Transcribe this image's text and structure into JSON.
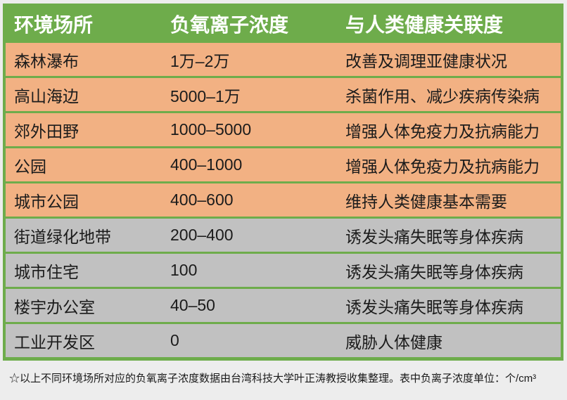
{
  "page": {
    "background": "#ededed"
  },
  "colors": {
    "accent_green": "#6eac4b",
    "row_orange": "#f2b183",
    "row_gray": "#c1c1c1",
    "header_text": "#ffffff",
    "body_text": "#1b1b1b"
  },
  "chart_data": {
    "type": "table",
    "columns": [
      "环境场所",
      "负氧离子浓度",
      "与人类健康关联度"
    ],
    "rows": [
      {
        "place": "森林瀑布",
        "concentration": "1万–2万",
        "health": "改善及调理亚健康状况",
        "tone": "orange"
      },
      {
        "place": "高山海边",
        "concentration": "5000–1万",
        "health": "杀菌作用、减少疾病传染病",
        "tone": "orange"
      },
      {
        "place": "郊外田野",
        "concentration": "1000–5000",
        "health": "增强人体免疫力及抗病能力",
        "tone": "orange"
      },
      {
        "place": "公园",
        "concentration": "400–1000",
        "health": "增强人体免疫力及抗病能力",
        "tone": "orange"
      },
      {
        "place": "城市公园",
        "concentration": "400–600",
        "health": "维持人类健康基本需要",
        "tone": "orange"
      },
      {
        "place": "街道绿化地带",
        "concentration": "200–400",
        "health": "诱发头痛失眠等身体疾病",
        "tone": "gray"
      },
      {
        "place": "城市住宅",
        "concentration": "100",
        "health": "诱发头痛失眠等身体疾病",
        "tone": "gray"
      },
      {
        "place": "楼宇办公室",
        "concentration": "40–50",
        "health": "诱发头痛失眠等身体疾病",
        "tone": "gray"
      },
      {
        "place": "工业开发区",
        "concentration": "0",
        "health": "威胁人体健康",
        "tone": "gray"
      }
    ]
  },
  "footnote": {
    "star": "☆",
    "text": "以上不同环境场所对应的负氧离子浓度数据由台湾科技大学叶正涛教授收集整理。表中负离子浓度单位：个/cm³"
  }
}
